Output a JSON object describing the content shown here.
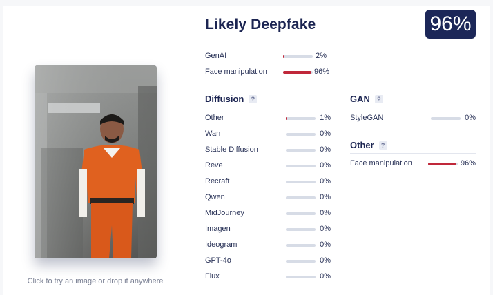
{
  "header": {
    "verdict": "Likely Deepfake",
    "score": "96%"
  },
  "image_panel": {
    "hint": "Click to try an image or drop it anywhere"
  },
  "summary": [
    {
      "label": "GenAI",
      "value": 2,
      "pct": "2%"
    },
    {
      "label": "Face manipulation",
      "value": 96,
      "pct": "96%"
    }
  ],
  "diffusion": {
    "title": "Diffusion",
    "help": "?",
    "items": [
      {
        "label": "Other",
        "value": 1,
        "pct": "1%"
      },
      {
        "label": "Wan",
        "value": 0,
        "pct": "0%"
      },
      {
        "label": "Stable Diffusion",
        "value": 0,
        "pct": "0%"
      },
      {
        "label": "Reve",
        "value": 0,
        "pct": "0%"
      },
      {
        "label": "Recraft",
        "value": 0,
        "pct": "0%"
      },
      {
        "label": "Qwen",
        "value": 0,
        "pct": "0%"
      },
      {
        "label": "MidJourney",
        "value": 0,
        "pct": "0%"
      },
      {
        "label": "Imagen",
        "value": 0,
        "pct": "0%"
      },
      {
        "label": "Ideogram",
        "value": 0,
        "pct": "0%"
      },
      {
        "label": "GPT-4o",
        "value": 0,
        "pct": "0%"
      },
      {
        "label": "Flux",
        "value": 0,
        "pct": "0%"
      }
    ]
  },
  "gan": {
    "title": "GAN",
    "help": "?",
    "items": [
      {
        "label": "StyleGAN",
        "value": 0,
        "pct": "0%"
      }
    ]
  },
  "other": {
    "title": "Other",
    "help": "?",
    "items": [
      {
        "label": "Face manipulation",
        "value": 96,
        "pct": "96%"
      }
    ]
  },
  "colors": {
    "accent": "#c0283a",
    "track": "#d7dce6",
    "navy": "#1c2758"
  }
}
